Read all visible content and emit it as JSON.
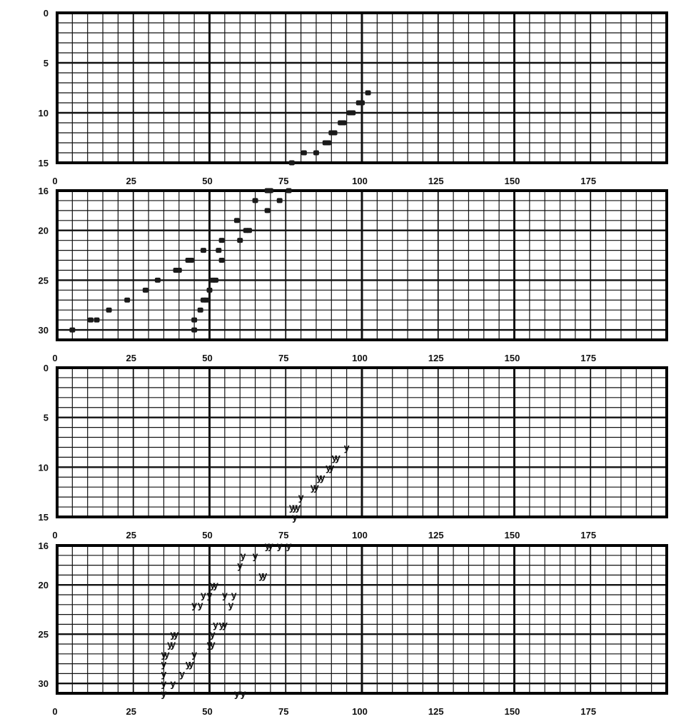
{
  "chart_data": [
    {
      "type": "scatter",
      "xlim": [
        0,
        200
      ],
      "ylim": [
        0,
        15
      ],
      "x_ticks": [
        "0",
        "25",
        "50",
        "75",
        "100",
        "125",
        "150",
        "175"
      ],
      "y_ticks": [
        "0",
        "5",
        "10",
        "15"
      ],
      "grid": true,
      "marker": "x",
      "points": [
        [
          77,
          15
        ],
        [
          81,
          14
        ],
        [
          85,
          14
        ],
        [
          88,
          13
        ],
        [
          89,
          13
        ],
        [
          90,
          12
        ],
        [
          91,
          12
        ],
        [
          93,
          11
        ],
        [
          94,
          11
        ],
        [
          96,
          10
        ],
        [
          97,
          10
        ],
        [
          99,
          9
        ],
        [
          100,
          9
        ],
        [
          102,
          8
        ]
      ]
    },
    {
      "type": "scatter",
      "xlim": [
        0,
        200
      ],
      "ylim": [
        16,
        31
      ],
      "x_ticks": [
        "0",
        "25",
        "50",
        "75",
        "100",
        "125",
        "150",
        "175"
      ],
      "y_ticks": [
        "16",
        "20",
        "25",
        "30"
      ],
      "grid": true,
      "marker": "x",
      "points": [
        [
          5,
          30
        ],
        [
          11,
          29
        ],
        [
          13,
          29
        ],
        [
          17,
          28
        ],
        [
          23,
          27
        ],
        [
          29,
          26
        ],
        [
          33,
          25
        ],
        [
          39,
          24
        ],
        [
          40,
          24
        ],
        [
          43,
          23
        ],
        [
          44,
          23
        ],
        [
          45,
          30
        ],
        [
          45,
          29
        ],
        [
          47,
          28
        ],
        [
          48,
          27
        ],
        [
          49,
          27
        ],
        [
          48,
          22
        ],
        [
          50,
          26
        ],
        [
          51,
          25
        ],
        [
          52,
          25
        ],
        [
          53,
          22
        ],
        [
          54,
          21
        ],
        [
          54,
          23
        ],
        [
          59,
          19
        ],
        [
          60,
          21
        ],
        [
          62,
          20
        ],
        [
          63,
          20
        ],
        [
          65,
          17
        ],
        [
          69,
          16
        ],
        [
          70,
          16
        ],
        [
          69,
          18
        ],
        [
          73,
          17
        ],
        [
          76,
          16
        ]
      ]
    },
    {
      "type": "scatter",
      "xlim": [
        0,
        200
      ],
      "ylim": [
        0,
        15
      ],
      "x_ticks": [
        "0",
        "25",
        "50",
        "75",
        "100",
        "125",
        "150",
        "175"
      ],
      "y_ticks": [
        "0",
        "5",
        "10",
        "15"
      ],
      "grid": true,
      "marker": "y",
      "points": [
        [
          77,
          14
        ],
        [
          78,
          14
        ],
        [
          79,
          14
        ],
        [
          80,
          13
        ],
        [
          84,
          12
        ],
        [
          85,
          12
        ],
        [
          86,
          11
        ],
        [
          87,
          11
        ],
        [
          89,
          10
        ],
        [
          90,
          10
        ],
        [
          91,
          9
        ],
        [
          92,
          9
        ],
        [
          95,
          8
        ],
        [
          78,
          15
        ]
      ]
    },
    {
      "type": "scatter",
      "xlim": [
        0,
        200
      ],
      "ylim": [
        16,
        31
      ],
      "x_ticks": [
        "0",
        "25",
        "50",
        "75",
        "100",
        "125",
        "150",
        "175"
      ],
      "y_ticks": [
        "16",
        "20",
        "25",
        "30"
      ],
      "grid": true,
      "marker": "y",
      "points": [
        [
          35,
          31
        ],
        [
          35,
          30
        ],
        [
          35,
          29
        ],
        [
          35,
          28
        ],
        [
          35,
          27
        ],
        [
          36,
          27
        ],
        [
          37,
          26
        ],
        [
          38,
          26
        ],
        [
          38,
          25
        ],
        [
          39,
          25
        ],
        [
          38,
          30
        ],
        [
          41,
          29
        ],
        [
          43,
          28
        ],
        [
          44,
          28
        ],
        [
          45,
          27
        ],
        [
          45,
          22
        ],
        [
          47,
          22
        ],
        [
          48,
          21
        ],
        [
          50,
          26
        ],
        [
          51,
          26
        ],
        [
          51,
          25
        ],
        [
          52,
          24
        ],
        [
          54,
          24
        ],
        [
          55,
          24
        ],
        [
          50,
          21
        ],
        [
          51,
          20
        ],
        [
          52,
          20
        ],
        [
          55,
          21
        ],
        [
          57,
          22
        ],
        [
          58,
          21
        ],
        [
          59,
          31
        ],
        [
          61,
          31
        ],
        [
          60,
          18
        ],
        [
          61,
          17
        ],
        [
          65,
          17
        ],
        [
          67,
          19
        ],
        [
          68,
          19
        ],
        [
          69,
          16
        ],
        [
          70,
          16
        ],
        [
          73,
          16
        ],
        [
          76,
          16
        ]
      ]
    }
  ]
}
